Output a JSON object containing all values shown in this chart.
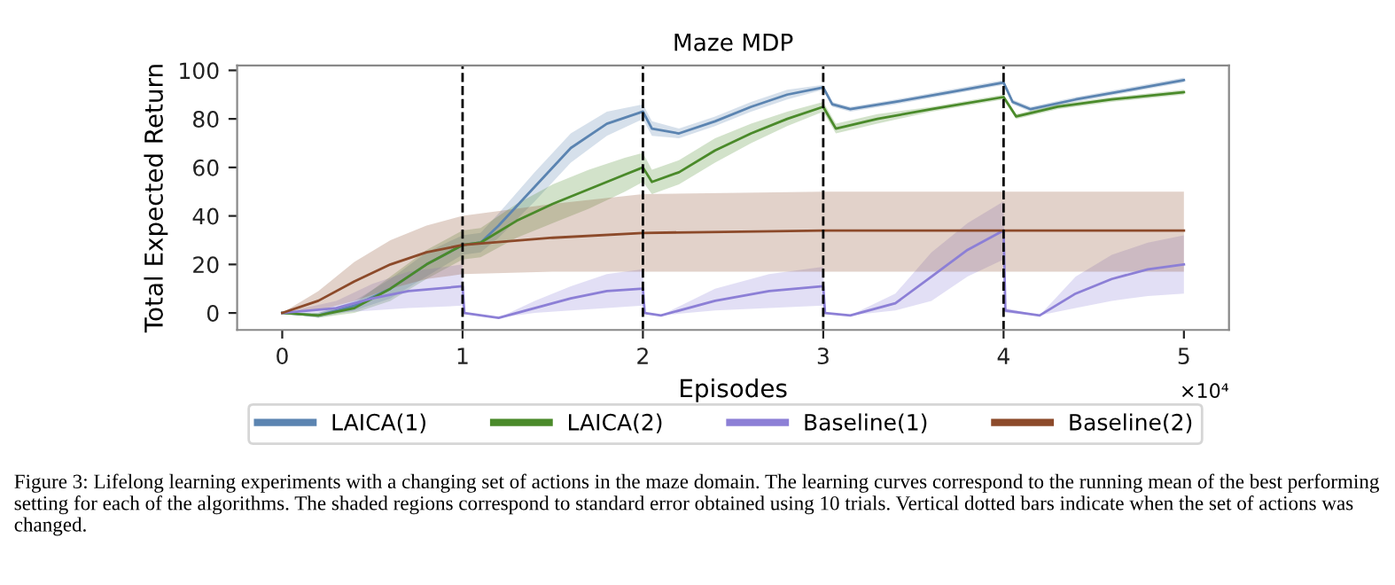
{
  "chart_data": {
    "type": "line",
    "title": "Maze MDP",
    "xlabel": "Episodes",
    "ylabel": "Total Expected Return",
    "xlim": [
      -0.25,
      5.25
    ],
    "xticks": [
      0,
      1,
      2,
      3,
      4,
      5
    ],
    "ylim": [
      -7,
      102
    ],
    "yticks": [
      0,
      20,
      40,
      60,
      80,
      100
    ],
    "grid": false,
    "legend": "bottom",
    "line_style": "solid",
    "marker": "none",
    "ref_lines": [
      {
        "axis": "x",
        "value": 1,
        "color": "#000000",
        "line_style": "dashed"
      },
      {
        "axis": "x",
        "value": 2,
        "color": "#000000",
        "line_style": "dashed"
      },
      {
        "axis": "x",
        "value": 3,
        "color": "#000000",
        "line_style": "dashed"
      },
      {
        "axis": "x",
        "value": 4,
        "color": "#000000",
        "line_style": "dashed"
      }
    ],
    "series": [
      {
        "name": "LAICA(1)",
        "color": "#5b84b1",
        "x": [
          0,
          0.2,
          0.4,
          0.6,
          0.8,
          1.0,
          1.1,
          1.2,
          1.4,
          1.6,
          1.8,
          2.0,
          2.05,
          2.2,
          2.4,
          2.6,
          2.8,
          3.0,
          3.05,
          3.15,
          3.4,
          3.7,
          4.0,
          4.05,
          4.15,
          4.4,
          4.7,
          5.0
        ],
        "values": [
          0,
          -1,
          3,
          10,
          20,
          28,
          29,
          36,
          52,
          68,
          78,
          83,
          76,
          74,
          79,
          85,
          90,
          93,
          86,
          84,
          87,
          91,
          95,
          87,
          84,
          88,
          92,
          96
        ],
        "lower": [
          0,
          -2,
          1,
          6,
          15,
          24,
          25,
          31,
          46,
          62,
          73,
          80,
          73,
          72,
          77,
          83,
          88,
          92,
          85,
          83,
          86,
          90,
          94,
          86,
          83,
          87,
          91,
          95
        ],
        "upper": [
          0,
          0,
          5,
          14,
          25,
          32,
          33,
          41,
          58,
          74,
          83,
          86,
          79,
          76,
          81,
          87,
          92,
          94,
          87,
          85,
          88,
          92,
          96,
          88,
          85,
          89,
          93,
          97
        ]
      },
      {
        "name": "LAICA(2)",
        "color": "#4a8a2a",
        "x": [
          0,
          0.2,
          0.4,
          0.6,
          0.8,
          1.0,
          1.1,
          1.3,
          1.5,
          1.7,
          1.9,
          2.0,
          2.05,
          2.2,
          2.4,
          2.6,
          2.8,
          3.0,
          3.07,
          3.3,
          3.6,
          4.0,
          4.07,
          4.3,
          4.6,
          5.0
        ],
        "values": [
          0,
          -1,
          2,
          10,
          20,
          28,
          29,
          38,
          45,
          51,
          57,
          60,
          54,
          58,
          67,
          74,
          80,
          85,
          76,
          80,
          84,
          89,
          81,
          85,
          88,
          91
        ],
        "lower": [
          0,
          -2,
          0,
          5,
          14,
          22,
          23,
          31,
          37,
          43,
          50,
          54,
          49,
          53,
          62,
          70,
          77,
          83,
          74,
          78,
          83,
          88,
          80,
          84,
          87,
          90
        ],
        "upper": [
          0,
          0,
          4,
          15,
          26,
          34,
          35,
          45,
          53,
          59,
          64,
          66,
          59,
          63,
          72,
          78,
          83,
          87,
          78,
          82,
          85,
          90,
          82,
          86,
          89,
          92
        ]
      },
      {
        "name": "Baseline(1)",
        "color": "#8c7fd6",
        "x": [
          0,
          0.3,
          0.5,
          0.7,
          1.0,
          1.01,
          1.2,
          1.4,
          1.6,
          1.8,
          2.0,
          2.01,
          2.1,
          2.4,
          2.7,
          3.0,
          3.01,
          3.15,
          3.4,
          3.6,
          3.8,
          4.0,
          4.01,
          4.2,
          4.4,
          4.6,
          4.8,
          5.0
        ],
        "values": [
          0,
          2,
          6,
          9,
          11,
          0,
          -2,
          2,
          6,
          9,
          10,
          0,
          -1,
          5,
          9,
          11,
          0,
          -1,
          4,
          15,
          26,
          34,
          1,
          -1,
          8,
          14,
          18,
          20
        ],
        "lower": [
          0,
          0,
          1,
          2,
          3,
          0,
          -2,
          0,
          1,
          2,
          3,
          0,
          -1,
          1,
          2,
          3,
          0,
          -1,
          1,
          5,
          15,
          22,
          0,
          -1,
          2,
          5,
          7,
          8
        ],
        "upper": [
          0,
          5,
          12,
          17,
          20,
          0,
          -2,
          5,
          11,
          16,
          18,
          0,
          -1,
          10,
          16,
          19,
          0,
          -1,
          8,
          25,
          37,
          46,
          2,
          -1,
          15,
          24,
          29,
          32
        ]
      },
      {
        "name": "Baseline(2)",
        "color": "#8c4a2a",
        "x": [
          0,
          0.2,
          0.4,
          0.6,
          0.8,
          1.0,
          1.5,
          2.0,
          3.0,
          4.0,
          5.0
        ],
        "values": [
          0,
          5,
          13,
          20,
          25,
          28,
          31,
          33,
          34,
          34,
          34
        ],
        "lower": [
          0,
          1,
          5,
          10,
          14,
          16,
          17,
          17,
          17,
          17,
          17
        ],
        "upper": [
          0,
          9,
          21,
          30,
          36,
          40,
          45,
          49,
          50,
          50,
          50
        ]
      }
    ],
    "annotations": [
      "×10⁴",
      "Figure 3: Lifelong learning experiments with a changing set of actions in the maze domain. The learning curves correspond to the running mean of the best performing setting for each of the algorithms. The shaded regions correspond to standard error obtained using 10 trials. Vertical dotted bars indicate when the set of actions was changed."
    ]
  }
}
